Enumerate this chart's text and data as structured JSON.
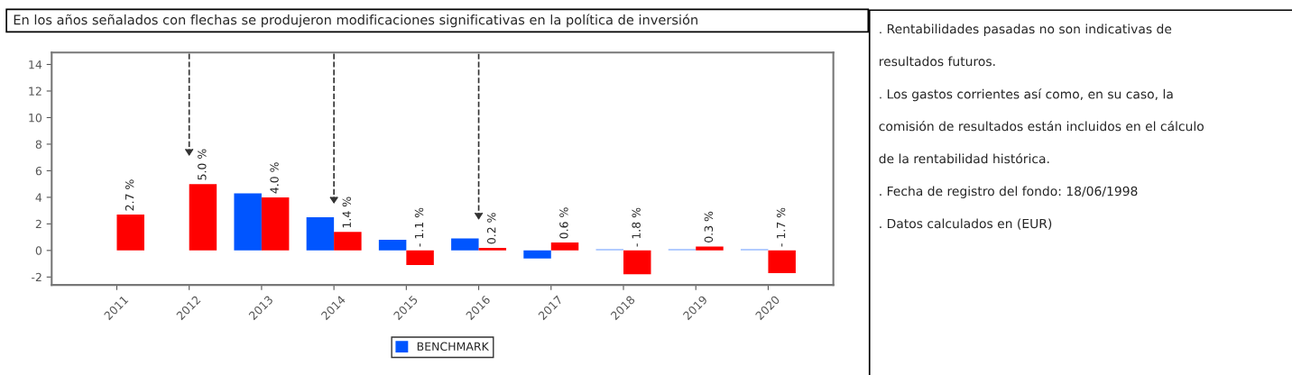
{
  "chart_data": {
    "type": "bar",
    "title": "En los años señalados con flechas se produjeron modificaciones significativas en la política de inversión",
    "categories": [
      "2011",
      "2012",
      "2013",
      "2014",
      "2015",
      "2016",
      "2017",
      "2018",
      "2019",
      "2020"
    ],
    "series": [
      {
        "name": "BENCHMARK",
        "color": "#0055ff",
        "colors": [
          "#0055ff",
          "#0055ff",
          "#0055ff",
          "#0055ff",
          "#0055ff",
          "#0055ff",
          "#0055ff",
          "#99bbff",
          "#99bbff",
          "#99bbff"
        ],
        "values": [
          null,
          null,
          4.3,
          2.5,
          0.8,
          0.9,
          -0.6,
          0.1,
          0.1,
          0.1
        ]
      },
      {
        "color": "#ff0000",
        "values": [
          2.7,
          5.0,
          4.0,
          1.4,
          -1.1,
          0.2,
          0.6,
          -1.8,
          0.3,
          -1.7
        ],
        "value_labels": [
          "2.7 %",
          "5.0 %",
          "4.0 %",
          "1.4 %",
          "- 1.1 %",
          "0.2 %",
          "0.6 %",
          "- 1.8 %",
          "0.3 %",
          "- 1.7 %"
        ]
      }
    ],
    "ylim": [
      -2.6,
      14.9
    ],
    "yticks": [
      -2,
      0,
      2,
      4,
      6,
      8,
      10,
      12,
      14
    ],
    "ref_lines": [
      {
        "axis": "x",
        "value": "2012",
        "line_style": "dashed",
        "color": "#333333"
      },
      {
        "axis": "x",
        "value": "2014",
        "line_style": "dashed",
        "color": "#333333"
      },
      {
        "axis": "x",
        "value": "2016",
        "line_style": "dashed",
        "color": "#333333"
      }
    ],
    "annotations": [
      ". Rentabilidades pasadas no son indicativas de",
      "resultados futuros.",
      ". Los gastos corrientes así como, en su caso, la",
      "comisión de resultados están incluidos en el cálculo",
      "de la rentabilidad histórica.",
      ". Fecha de registro del fondo: 18/06/1998",
      ". Datos calculados en (EUR)"
    ],
    "grid": false,
    "legend": "bottom"
  }
}
